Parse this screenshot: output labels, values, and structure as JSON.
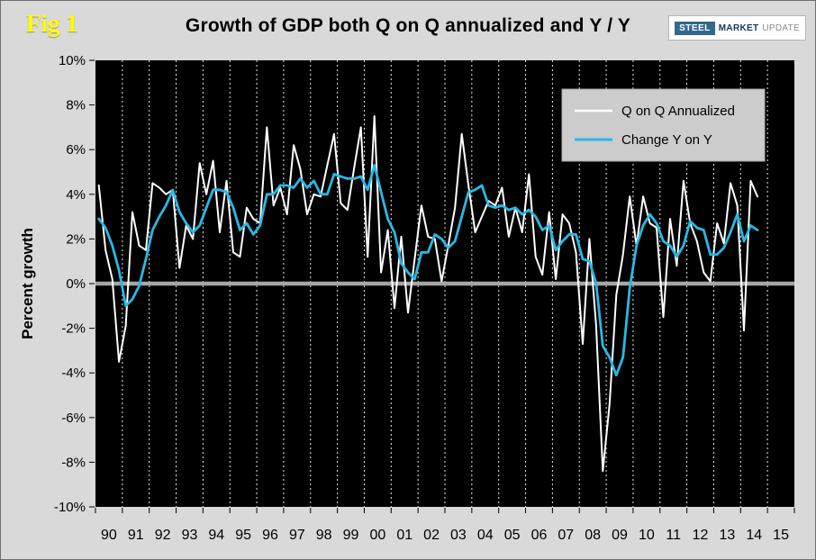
{
  "page": {
    "fig_label": "Fig 1",
    "title": "Growth of GDP both Q on Q annualized and Y / Y"
  },
  "logo": {
    "steel": "STEEL",
    "market": "MARKET",
    "update": "UPDATE"
  },
  "colors": {
    "page_bg": "#d9d9d9",
    "plot_bg": "#000000",
    "gridline": "#ffffff",
    "zero_line": "#a6a6a6",
    "qoq_line": "#ffffff",
    "yoy_line": "#29b8e5",
    "legend_bg": "#cccccc",
    "fig_label": "#ffff00",
    "axis_text": "#000000"
  },
  "chart_data": {
    "type": "line",
    "title": "Growth of GDP both Q on Q annualized and Y / Y",
    "ylabel": "Percent growth",
    "xlabel": "",
    "ylim": [
      -10,
      10
    ],
    "ytick_step": 2,
    "y_tick_labels": [
      "10%",
      "8%",
      "6%",
      "4%",
      "2%",
      "0%",
      "-2%",
      "-4%",
      "-6%",
      "-8%",
      "-10%"
    ],
    "x_start_year": 1990,
    "x_end_year": 2016,
    "points_per_year": 4,
    "x_labels": [
      "90",
      "91",
      "92",
      "93",
      "94",
      "95",
      "96",
      "97",
      "98",
      "99",
      "00",
      "01",
      "02",
      "03",
      "04",
      "05",
      "06",
      "07",
      "08",
      "09",
      "10",
      "11",
      "12",
      "13",
      "14",
      "15"
    ],
    "grid": "vertical-dashed",
    "legend_position": "top-right",
    "series": [
      {
        "name": "Q on Q Annualized",
        "color_key": "qoq_line",
        "values": [
          4.4,
          1.5,
          0.2,
          -3.5,
          -1.9,
          3.2,
          1.7,
          1.5,
          4.5,
          4.3,
          4.0,
          4.2,
          0.7,
          2.6,
          2.0,
          5.4,
          4.0,
          5.5,
          2.3,
          4.6,
          1.4,
          1.2,
          3.4,
          2.9,
          2.7,
          7.0,
          3.5,
          4.3,
          3.1,
          6.2,
          5.1,
          3.1,
          4.0,
          3.9,
          5.3,
          6.7,
          3.6,
          3.3,
          5.2,
          7.0,
          1.2,
          7.5,
          0.5,
          2.4,
          -1.1,
          2.1,
          -1.3,
          1.1,
          3.5,
          2.1,
          2.0,
          0.1,
          1.7,
          3.4,
          6.7,
          4.4,
          2.3,
          3.0,
          3.7,
          3.5,
          4.3,
          2.1,
          3.4,
          2.3,
          4.9,
          1.2,
          0.4,
          3.2,
          0.2,
          3.1,
          2.7,
          1.4,
          -2.7,
          2.0,
          -1.9,
          -8.4,
          -5.4,
          -0.5,
          1.3,
          3.9,
          1.7,
          3.9,
          2.7,
          2.5,
          -1.5,
          2.9,
          0.8,
          4.6,
          2.7,
          1.9,
          0.5,
          0.1,
          2.7,
          1.8,
          4.5,
          3.5,
          -2.1,
          4.6,
          3.9
        ]
      },
      {
        "name": "Change Y on Y",
        "color_key": "yoy_line",
        "values": [
          2.9,
          2.5,
          1.7,
          0.6,
          -1.0,
          -0.7,
          -0.1,
          1.1,
          2.4,
          3.0,
          3.5,
          4.2,
          3.2,
          2.7,
          2.3,
          2.6,
          3.4,
          4.2,
          4.2,
          4.1,
          3.4,
          2.4,
          2.7,
          2.2,
          2.6,
          4.0,
          4.0,
          4.4,
          4.4,
          4.3,
          4.7,
          4.3,
          4.6,
          4.0,
          4.0,
          4.9,
          4.8,
          4.7,
          4.7,
          4.8,
          4.2,
          5.3,
          4.1,
          2.9,
          2.3,
          0.9,
          0.5,
          0.2,
          1.4,
          1.4,
          2.2,
          2.0,
          1.6,
          1.9,
          3.0,
          4.1,
          4.2,
          4.4,
          3.5,
          3.4,
          3.5,
          3.3,
          3.4,
          3.1,
          3.3,
          3.0,
          2.4,
          2.6,
          1.5,
          1.9,
          2.2,
          2.2,
          1.1,
          1.0,
          0.0,
          -2.8,
          -3.3,
          -4.1,
          -3.3,
          -0.2,
          1.7,
          2.6,
          3.1,
          2.7,
          1.9,
          1.7,
          1.2,
          1.7,
          2.8,
          2.5,
          2.4,
          1.3,
          1.3,
          1.6,
          2.3,
          3.1,
          1.9,
          2.6,
          2.4
        ]
      }
    ]
  }
}
